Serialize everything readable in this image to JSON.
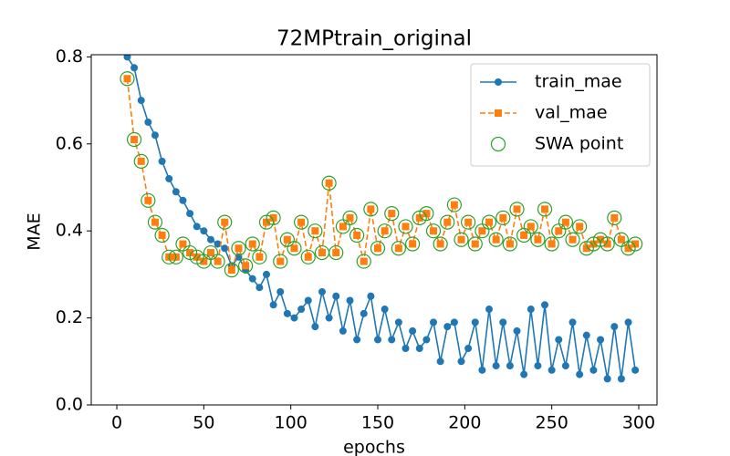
{
  "chart_data": {
    "type": "line",
    "title": "72MPtrain_original",
    "xlabel": "epochs",
    "ylabel": "MAE",
    "x": [
      6,
      10,
      14,
      18,
      22,
      26,
      30,
      34,
      38,
      42,
      46,
      50,
      54,
      58,
      62,
      66,
      70,
      74,
      78,
      82,
      86,
      90,
      94,
      98,
      102,
      106,
      110,
      114,
      118,
      122,
      126,
      130,
      134,
      138,
      142,
      146,
      150,
      154,
      158,
      162,
      166,
      170,
      174,
      178,
      182,
      186,
      190,
      194,
      198,
      202,
      206,
      210,
      214,
      218,
      222,
      226,
      230,
      234,
      238,
      242,
      246,
      250,
      254,
      258,
      262,
      266,
      270,
      274,
      278,
      282,
      286,
      290,
      294,
      298
    ],
    "series": [
      {
        "name": "train_mae",
        "color": "#1f77b4",
        "marker": "circle",
        "linestyle": "solid",
        "values": [
          0.8,
          0.775,
          0.7,
          0.65,
          0.62,
          0.56,
          0.52,
          0.49,
          0.47,
          0.44,
          0.41,
          0.4,
          0.38,
          0.37,
          0.36,
          0.32,
          0.34,
          0.31,
          0.29,
          0.27,
          0.3,
          0.23,
          0.26,
          0.21,
          0.2,
          0.22,
          0.24,
          0.18,
          0.26,
          0.2,
          0.25,
          0.17,
          0.24,
          0.15,
          0.21,
          0.25,
          0.15,
          0.22,
          0.15,
          0.19,
          0.13,
          0.17,
          0.13,
          0.15,
          0.19,
          0.1,
          0.18,
          0.19,
          0.1,
          0.13,
          0.19,
          0.08,
          0.22,
          0.09,
          0.19,
          0.09,
          0.17,
          0.07,
          0.22,
          0.09,
          0.23,
          0.08,
          0.15,
          0.09,
          0.19,
          0.07,
          0.16,
          0.08,
          0.15,
          0.06,
          0.18,
          0.06,
          0.19,
          0.08
        ]
      },
      {
        "name": "val_mae",
        "color": "#ff7f0e",
        "marker": "square",
        "linestyle": "dashed",
        "values": [
          0.75,
          0.61,
          0.56,
          0.47,
          0.42,
          0.39,
          0.34,
          0.34,
          0.37,
          0.35,
          0.34,
          0.33,
          0.35,
          0.33,
          0.42,
          0.31,
          0.36,
          0.32,
          0.37,
          0.34,
          0.42,
          0.43,
          0.33,
          0.38,
          0.36,
          0.42,
          0.34,
          0.4,
          0.35,
          0.51,
          0.35,
          0.41,
          0.43,
          0.39,
          0.33,
          0.45,
          0.36,
          0.4,
          0.44,
          0.36,
          0.41,
          0.37,
          0.43,
          0.44,
          0.4,
          0.37,
          0.42,
          0.46,
          0.38,
          0.42,
          0.37,
          0.4,
          0.42,
          0.38,
          0.43,
          0.37,
          0.45,
          0.39,
          0.41,
          0.38,
          0.45,
          0.37,
          0.4,
          0.42,
          0.38,
          0.41,
          0.36,
          0.37,
          0.38,
          0.37,
          0.43,
          0.38,
          0.36,
          0.37
        ]
      },
      {
        "name": "SWA point",
        "color": "#2ca02c",
        "marker": "open-circle",
        "linestyle": "none",
        "values": [
          0.75,
          0.61,
          0.56,
          0.47,
          0.42,
          0.39,
          0.34,
          0.34,
          0.37,
          0.35,
          0.34,
          0.33,
          0.35,
          0.33,
          0.42,
          0.31,
          0.36,
          0.32,
          0.37,
          0.34,
          0.42,
          0.43,
          0.33,
          0.38,
          0.36,
          0.42,
          0.34,
          0.4,
          0.35,
          0.51,
          0.35,
          0.41,
          0.43,
          0.39,
          0.33,
          0.45,
          0.36,
          0.4,
          0.44,
          0.36,
          0.41,
          0.37,
          0.43,
          0.44,
          0.4,
          0.37,
          0.42,
          0.46,
          0.38,
          0.42,
          0.37,
          0.4,
          0.42,
          0.38,
          0.43,
          0.37,
          0.45,
          0.39,
          0.41,
          0.38,
          0.45,
          0.37,
          0.4,
          0.42,
          0.38,
          0.41,
          0.36,
          0.37,
          0.38,
          0.37,
          0.43,
          0.38,
          0.36,
          0.37
        ]
      }
    ],
    "xlim": [
      -14.7,
      310.5
    ],
    "ylim": [
      0,
      0.805
    ],
    "xticks": [
      0,
      50,
      100,
      150,
      200,
      250,
      300
    ],
    "yticks": [
      {
        "value": 0,
        "label": "0.0"
      },
      0.2,
      0.4,
      0.6,
      0.8
    ],
    "legend": "upper right",
    "grid": false
  }
}
